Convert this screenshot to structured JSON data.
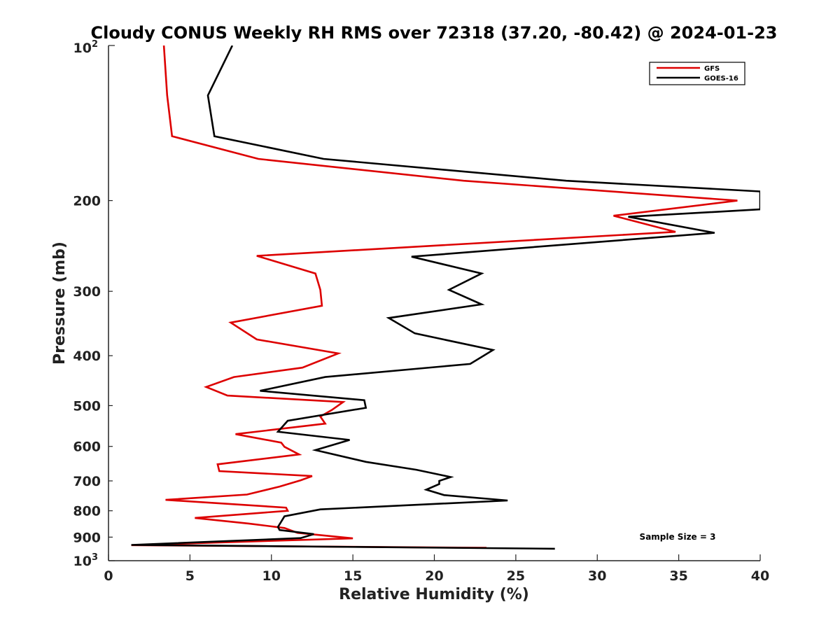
{
  "chart_data": {
    "type": "line",
    "title": "Cloudy CONUS Weekly RH RMS over 72318 (37.20, -80.42) @ 2024-01-23",
    "xlabel": "Relative Humidity (%)",
    "ylabel": "Pressure (mb)",
    "xlim": [
      0,
      40
    ],
    "ylim": [
      100,
      1000
    ],
    "yscale": "log",
    "yreversed": true,
    "xticks": [
      0,
      5,
      10,
      15,
      20,
      25,
      30,
      35,
      40
    ],
    "xtick_labels": [
      "0",
      "5",
      "10",
      "15",
      "20",
      "25",
      "30",
      "35",
      "40"
    ],
    "yticks": [
      200,
      300,
      400,
      500,
      600,
      700,
      800,
      900
    ],
    "ytick_labels": [
      "200",
      "300",
      "400",
      "500",
      "600",
      "700",
      "800",
      "900"
    ],
    "y_exp_labels": {
      "top_base": "10",
      "top_exp": "2",
      "bottom_base": "10",
      "bottom_exp": "3"
    },
    "legend_position": "top-right",
    "annotation": "Sample Size = 3",
    "series": [
      {
        "name": "GFS",
        "color": "#dd0000",
        "points": [
          [
            3.4,
            100
          ],
          [
            3.6,
            125
          ],
          [
            3.9,
            150
          ],
          [
            9.2,
            166
          ],
          [
            21.8,
            183
          ],
          [
            38.6,
            200
          ],
          [
            31.0,
            214
          ],
          [
            34.8,
            230
          ],
          [
            9.1,
            256
          ],
          [
            12.7,
            277
          ],
          [
            13.0,
            298
          ],
          [
            13.1,
            320
          ],
          [
            7.5,
            345
          ],
          [
            9.1,
            372
          ],
          [
            14.1,
            396
          ],
          [
            11.9,
            422
          ],
          [
            7.7,
            440
          ],
          [
            6.0,
            460
          ],
          [
            7.3,
            478
          ],
          [
            14.4,
            492
          ],
          [
            13.7,
            510
          ],
          [
            13.0,
            525
          ],
          [
            13.3,
            542
          ],
          [
            7.8,
            568
          ],
          [
            10.6,
            590
          ],
          [
            10.8,
            601
          ],
          [
            11.7,
            622
          ],
          [
            6.7,
            650
          ],
          [
            6.8,
            670
          ],
          [
            12.5,
            685
          ],
          [
            11.8,
            698
          ],
          [
            10.5,
            718
          ],
          [
            8.5,
            744
          ],
          [
            3.5,
            762
          ],
          [
            10.9,
            789
          ],
          [
            11.0,
            800
          ],
          [
            5.3,
            826
          ],
          [
            8.6,
            847
          ],
          [
            10.8,
            864
          ],
          [
            11.6,
            883
          ],
          [
            15.0,
            905
          ],
          [
            1.4,
            933
          ],
          [
            23.2,
            944
          ]
        ]
      },
      {
        "name": "GOES-16",
        "color": "#000000",
        "points": [
          [
            7.6,
            100
          ],
          [
            6.1,
            125
          ],
          [
            6.5,
            150
          ],
          [
            13.2,
            166
          ],
          [
            28.1,
            183
          ],
          [
            40.0,
            192
          ],
          [
            40.0,
            208
          ],
          [
            31.9,
            215
          ],
          [
            37.2,
            231
          ],
          [
            18.6,
            257
          ],
          [
            22.9,
            277
          ],
          [
            20.9,
            298
          ],
          [
            22.9,
            318
          ],
          [
            17.2,
            338
          ],
          [
            18.8,
            362
          ],
          [
            23.6,
            390
          ],
          [
            22.2,
            415
          ],
          [
            13.3,
            440
          ],
          [
            9.3,
            468
          ],
          [
            15.7,
            488
          ],
          [
            15.8,
            505
          ],
          [
            11.0,
            535
          ],
          [
            10.4,
            562
          ],
          [
            14.8,
            583
          ],
          [
            12.7,
            610
          ],
          [
            15.8,
            643
          ],
          [
            18.9,
            666
          ],
          [
            21.0,
            688
          ],
          [
            20.3,
            700
          ],
          [
            20.3,
            710
          ],
          [
            19.5,
            728
          ],
          [
            20.6,
            746
          ],
          [
            24.5,
            764
          ],
          [
            13.0,
            795
          ],
          [
            10.8,
            820
          ],
          [
            10.4,
            860
          ],
          [
            10.5,
            872
          ],
          [
            12.6,
            888
          ],
          [
            11.8,
            904
          ],
          [
            1.4,
            932
          ],
          [
            27.4,
            948
          ]
        ]
      }
    ]
  }
}
